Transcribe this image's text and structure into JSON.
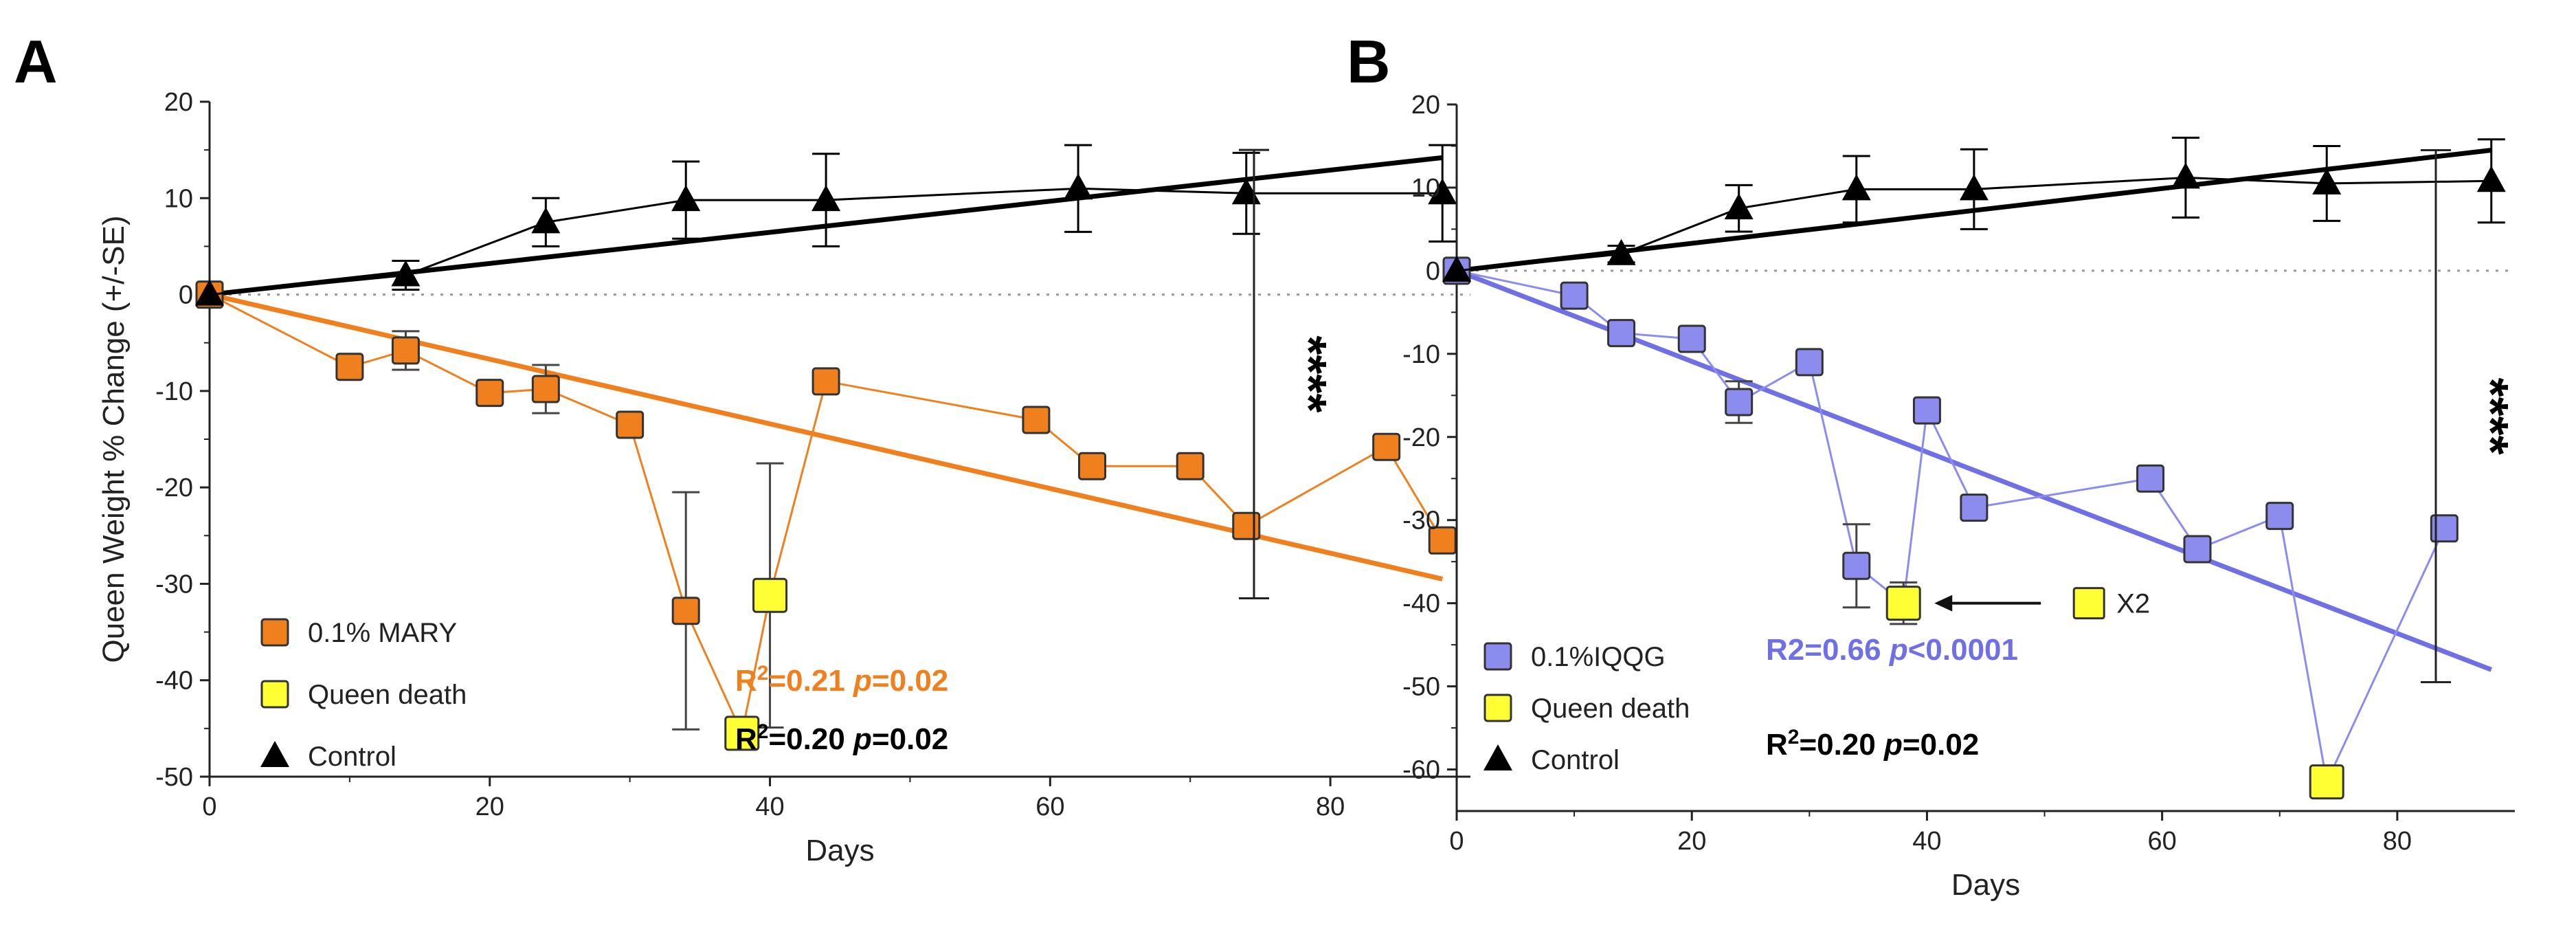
{
  "chart_data": [
    {
      "type": "line",
      "panel_label": "A",
      "xlabel": "Days",
      "ylabel": "Queen Weight % Change (+/-SE)",
      "xlim": [
        0,
        90
      ],
      "ylim": [
        -50,
        20
      ],
      "xticks": [
        0,
        20,
        40,
        60,
        80
      ],
      "yticks": [
        20,
        10,
        0,
        -10,
        -20,
        -30,
        -40,
        -50
      ],
      "xtick_labels": [
        "0",
        "20",
        "40",
        "60",
        "80"
      ],
      "ytick_labels": [
        "20",
        "10",
        "0",
        "-10",
        "-20",
        "-30",
        "-40",
        "-50"
      ],
      "zero_line": true,
      "significance": "****",
      "significance_range": [
        15,
        -31.5
      ],
      "series": [
        {
          "name": "0.1% MARY",
          "color": "#f07f1e",
          "marker": "square",
          "x": [
            0,
            10,
            14,
            20,
            24,
            30,
            34,
            38,
            40,
            44,
            59,
            63,
            70,
            74,
            84,
            88
          ],
          "y": [
            0,
            -7.5,
            -5.8,
            -10.2,
            -9.8,
            -13.5,
            -32.8,
            -45.5,
            -31.2,
            -9,
            -13,
            -17.8,
            -17.8,
            -24,
            -15.8,
            -25.5
          ],
          "err": [
            0,
            0,
            2,
            0,
            2.5,
            0,
            12.3,
            0,
            13.7,
            0,
            0,
            0,
            0,
            0,
            0,
            0
          ],
          "death_flags": [
            false,
            false,
            false,
            false,
            false,
            false,
            false,
            true,
            true,
            false,
            false,
            false,
            false,
            false,
            false,
            false
          ]
        },
        {
          "name": "Control",
          "color": "#000000",
          "marker": "triangle",
          "x": [
            0,
            14,
            24,
            34,
            44,
            62,
            74,
            88
          ],
          "y": [
            0,
            2,
            7.5,
            9.8,
            9.8,
            11,
            10.5,
            10.5
          ],
          "err": [
            0,
            1.5,
            2.5,
            4,
            4.8,
            4.5,
            4.2,
            5
          ]
        }
      ],
      "fits": [
        {
          "name": "0.1% MARY fit",
          "color": "#f07f1e",
          "x": [
            0,
            88
          ],
          "y": [
            0,
            -29.5
          ]
        },
        {
          "name": "Control fit",
          "color": "#000000",
          "x": [
            0,
            88
          ],
          "y": [
            0,
            14.2
          ]
        }
      ],
      "legend": [
        {
          "label": "0.1% MARY",
          "marker": "square",
          "color": "#f07f1e"
        },
        {
          "label": "Queen death",
          "marker": "square",
          "color": "#ffff33"
        },
        {
          "label": "Control",
          "marker": "triangle",
          "color": "#000000"
        }
      ],
      "annotations": [
        {
          "parts": [
            {
              "t": "R",
              "r": "r"
            },
            {
              "t": "2",
              "r": "sup"
            },
            {
              "t": "=0.21 ",
              "r": "r"
            },
            {
              "t": "p",
              "r": "i"
            },
            {
              "t": "=0.02",
              "r": "r"
            }
          ],
          "color": "#f07f1e"
        },
        {
          "parts": [
            {
              "t": "R",
              "r": "r"
            },
            {
              "t": "2",
              "r": "sup"
            },
            {
              "t": "=0.20 ",
              "r": "r"
            },
            {
              "t": "p",
              "r": "i"
            },
            {
              "t": "=0.02",
              "r": "r"
            }
          ],
          "color": "#000000"
        }
      ]
    },
    {
      "type": "line",
      "panel_label": "B",
      "xlabel": "Days",
      "ylabel": "",
      "xlim": [
        0,
        90
      ],
      "ylim": [
        -65,
        20
      ],
      "xticks": [
        0,
        20,
        40,
        60,
        80
      ],
      "yticks": [
        20,
        10,
        0,
        -10,
        -20,
        -30,
        -40,
        -50,
        -60
      ],
      "xtick_labels": [
        "0",
        "20",
        "40",
        "60",
        "80"
      ],
      "ytick_labels": [
        "20",
        "10",
        "0",
        "-10",
        "-20",
        "-30",
        "-40",
        "-50",
        "-60"
      ],
      "zero_line": true,
      "significance": "****",
      "significance_range": [
        14.5,
        -49.5
      ],
      "series": [
        {
          "name": "0.1%IQQG",
          "color": "#8c8cee",
          "marker": "square",
          "x": [
            0,
            10,
            14,
            20,
            24,
            30,
            34,
            38,
            40,
            44,
            59,
            63,
            70,
            74,
            84
          ],
          "y": [
            0,
            -3,
            -7.5,
            -8.2,
            -15.8,
            -11,
            -35.5,
            -40,
            -16.8,
            -28.5,
            -25,
            -33.5,
            -29.5,
            -61.5,
            -31
          ],
          "err": [
            0,
            0,
            0,
            0,
            2.5,
            0,
            5,
            2.5,
            0,
            0,
            0,
            0,
            0,
            0,
            0
          ],
          "death_flags": [
            false,
            false,
            false,
            false,
            false,
            false,
            false,
            true,
            false,
            false,
            false,
            false,
            false,
            true,
            false
          ]
        },
        {
          "name": "Control",
          "color": "#000000",
          "marker": "triangle",
          "x": [
            0,
            14,
            24,
            34,
            44,
            62,
            74,
            88
          ],
          "y": [
            0,
            2,
            7.5,
            9.8,
            9.8,
            11.2,
            10.5,
            10.8
          ],
          "err": [
            0,
            1,
            2.8,
            4,
            4.8,
            4.8,
            4.5,
            5
          ]
        }
      ],
      "fits": [
        {
          "name": "0.1%IQQG fit",
          "color": "#7070e6",
          "x": [
            0,
            88
          ],
          "y": [
            0,
            -48
          ]
        },
        {
          "name": "Control fit",
          "color": "#000000",
          "x": [
            0,
            88
          ],
          "y": [
            0,
            14.5
          ]
        }
      ],
      "legend": [
        {
          "label": "0.1%IQQG",
          "marker": "square",
          "color": "#8c8cee"
        },
        {
          "label": "Queen death",
          "marker": "square",
          "color": "#ffff33"
        },
        {
          "label": "Control",
          "marker": "triangle",
          "color": "#000000"
        }
      ],
      "annotations": [
        {
          "parts": [
            {
              "t": "R2=0.66 ",
              "r": "r"
            },
            {
              "t": "p",
              "r": "i"
            },
            {
              "t": "<0.0001",
              "r": "r"
            }
          ],
          "color": "#7070e6"
        },
        {
          "parts": [
            {
              "t": "R",
              "r": "r"
            },
            {
              "t": "2",
              "r": "sup"
            },
            {
              "t": "=0.20 ",
              "r": "r"
            },
            {
              "t": "p",
              "r": "i"
            },
            {
              "t": "=0.02",
              "r": "r"
            }
          ],
          "color": "#000000"
        }
      ],
      "callout": {
        "label": "X2",
        "target_x": 38,
        "target_y": -40,
        "box_color": "#ffff33"
      }
    }
  ],
  "colors": {
    "death": "#ffff33",
    "zero_line": "#999999"
  }
}
